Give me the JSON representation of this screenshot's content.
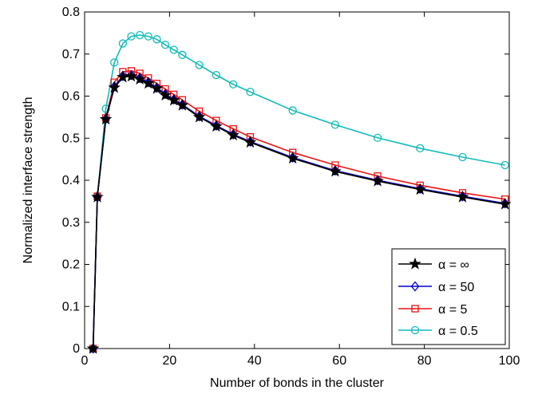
{
  "chart_data": {
    "type": "line",
    "xlabel": "Number of bonds in the cluster",
    "ylabel": "Normalized interface strength",
    "xlim": [
      0,
      100
    ],
    "ylim": [
      0,
      0.8
    ],
    "xticks": [
      0,
      20,
      40,
      60,
      80,
      100
    ],
    "xtick_labels": [
      "0",
      "20",
      "40",
      "60",
      "80",
      "100"
    ],
    "yticks": [
      0,
      0.1,
      0.2,
      0.3,
      0.4,
      0.5,
      0.6,
      0.7,
      0.8
    ],
    "ytick_labels": [
      "0",
      "0.1",
      "0.2",
      "0.3",
      "0.4",
      "0.5",
      "0.6",
      "0.7",
      "0.8"
    ],
    "grid": false,
    "legend_position": "bottom-right",
    "series": [
      {
        "name": "α = ∞",
        "color": "#000000",
        "marker": "star",
        "x": [
          2,
          3,
          5,
          7,
          9,
          11,
          13,
          15,
          17,
          19,
          21,
          23,
          27,
          31,
          35,
          39,
          49,
          59,
          69,
          79,
          89,
          99
        ],
        "y": [
          0.0,
          0.36,
          0.545,
          0.62,
          0.645,
          0.647,
          0.64,
          0.63,
          0.618,
          0.602,
          0.59,
          0.578,
          0.55,
          0.528,
          0.507,
          0.49,
          0.452,
          0.421,
          0.398,
          0.378,
          0.36,
          0.343
        ]
      },
      {
        "name": "α = 50",
        "color": "#0000cc",
        "marker": "diamond",
        "x": [
          2,
          3,
          5,
          7,
          9,
          11,
          13,
          15,
          17,
          19,
          21,
          23,
          27,
          31,
          35,
          39,
          49,
          59,
          69,
          79,
          89,
          99
        ],
        "y": [
          0.0,
          0.36,
          0.546,
          0.623,
          0.648,
          0.65,
          0.643,
          0.633,
          0.62,
          0.605,
          0.592,
          0.58,
          0.552,
          0.53,
          0.509,
          0.492,
          0.454,
          0.423,
          0.4,
          0.38,
          0.362,
          0.345
        ]
      },
      {
        "name": "α = 5",
        "color": "#ee1111",
        "marker": "square",
        "x": [
          2,
          3,
          5,
          7,
          9,
          11,
          13,
          15,
          17,
          19,
          21,
          23,
          27,
          31,
          35,
          39,
          49,
          59,
          69,
          79,
          89,
          99
        ],
        "y": [
          0.0,
          0.362,
          0.548,
          0.633,
          0.658,
          0.66,
          0.654,
          0.643,
          0.63,
          0.617,
          0.604,
          0.591,
          0.564,
          0.542,
          0.522,
          0.503,
          0.466,
          0.436,
          0.41,
          0.388,
          0.37,
          0.355
        ]
      },
      {
        "name": "α = 0.5",
        "color": "#11bbbb",
        "marker": "circle",
        "x": [
          2,
          3,
          5,
          7,
          9,
          11,
          13,
          15,
          17,
          19,
          21,
          23,
          27,
          31,
          35,
          39,
          49,
          59,
          69,
          79,
          89,
          99
        ],
        "y": [
          0.0,
          0.362,
          0.57,
          0.68,
          0.725,
          0.742,
          0.745,
          0.742,
          0.735,
          0.722,
          0.71,
          0.698,
          0.674,
          0.65,
          0.628,
          0.61,
          0.566,
          0.532,
          0.501,
          0.476,
          0.455,
          0.436
        ]
      }
    ]
  }
}
